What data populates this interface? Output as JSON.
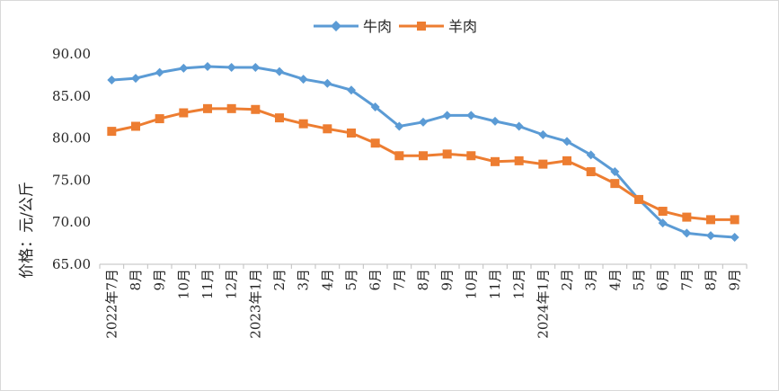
{
  "chart_data": {
    "type": "line",
    "title": "",
    "ylabel": "价格：元/公斤",
    "xlabel": "",
    "ylim": [
      65,
      90
    ],
    "yticks": [
      "65.00",
      "70.00",
      "75.00",
      "80.00",
      "85.00",
      "90.00"
    ],
    "grid": false,
    "legend_position": "top-center",
    "categories": [
      "2022年7月",
      "8月",
      "9月",
      "10月",
      "11月",
      "12月",
      "2023年1月",
      "2月",
      "3月",
      "4月",
      "5月",
      "6月",
      "7月",
      "8月",
      "9月",
      "10月",
      "11月",
      "12月",
      "2024年1月",
      "2月",
      "3月",
      "4月",
      "5月",
      "6月",
      "7月",
      "8月",
      "9月"
    ],
    "series": [
      {
        "name": "牛肉",
        "color": "#5b9bd5",
        "marker": "diamond",
        "values": [
          86.9,
          87.1,
          87.8,
          88.3,
          88.5,
          88.4,
          88.4,
          87.9,
          87.0,
          86.5,
          85.7,
          83.7,
          81.4,
          81.9,
          82.7,
          82.7,
          82.0,
          81.4,
          80.4,
          79.6,
          78.0,
          76.0,
          72.7,
          69.9,
          68.7,
          68.4,
          68.2
        ]
      },
      {
        "name": "羊肉",
        "color": "#ed7d31",
        "marker": "square",
        "values": [
          80.8,
          81.4,
          82.3,
          83.0,
          83.5,
          83.5,
          83.4,
          82.4,
          81.7,
          81.1,
          80.6,
          79.4,
          77.9,
          77.9,
          78.1,
          77.9,
          77.2,
          77.3,
          76.9,
          77.3,
          76.0,
          74.6,
          72.7,
          71.3,
          70.6,
          70.3,
          70.3
        ]
      }
    ]
  }
}
